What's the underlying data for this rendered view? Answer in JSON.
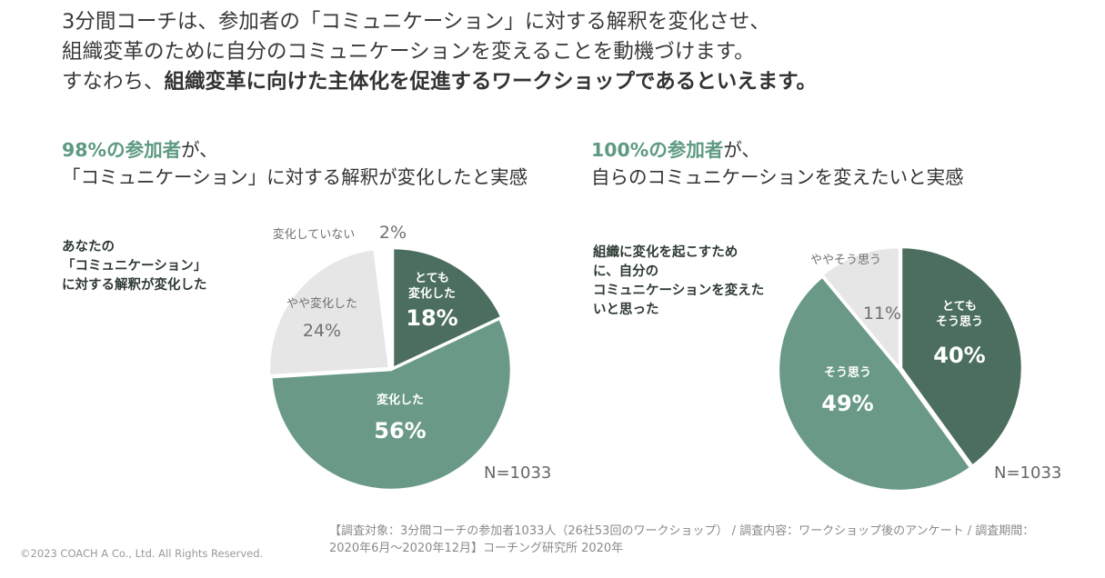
{
  "intro": {
    "line1": "3分間コーチは、参加者の「コミュニケーション」に対する解釈を変化させ、",
    "line2": "組織変革のために自分のコミュニケーションを変えることを動機づけます。",
    "line3_prefix": "すなわち、",
    "line3_bold": "組織変革に向けた主体化を促進するワークショップであるといえます。"
  },
  "left": {
    "headline_highlight": "98%の参加者",
    "headline_rest1": "が、",
    "headline_line2": "「コミュニケーション」に対する解釈が変化したと実感",
    "question": [
      "あなたの",
      "「コミュニケーション」",
      "に対する解釈が変化した"
    ],
    "n_label": "N=1033"
  },
  "right": {
    "headline_highlight": "100%の参加者",
    "headline_rest1": "が、",
    "headline_line2": "自らのコミュニケーションを変えたいと実感",
    "question": [
      "組織に変化を起こすため",
      "に、自分の",
      "コミュニケーションを変えた",
      "いと思った"
    ],
    "n_label": "N=1033"
  },
  "footnote": "【調査対象：3分間コーチの参加者1033人（26社53回のワークショップ） / 調査内容：ワークショップ後のアンケート / 調査期間：2020年6月～2020年12月】コーチング研究所 2020年",
  "copyright": "©2023 COACH A Co., Ltd. All Rights Reserved.",
  "colors": {
    "dark_green": "#4b6e5f",
    "mid_green": "#6a9a87",
    "light_gray": "#e6e6e6",
    "accent": "#5e9a81"
  },
  "chart_data": [
    {
      "type": "pie",
      "slices": [
        {
          "label": [
            "とても",
            "変化した"
          ],
          "value": 18,
          "display": "18%",
          "color": "#4b6e5f"
        },
        {
          "label": [
            "変化した"
          ],
          "value": 56,
          "display": "56%",
          "color": "#6a9a87"
        },
        {
          "label": [
            "やや変化した"
          ],
          "value": 24,
          "display": "24%",
          "color": "#e6e6e6"
        },
        {
          "label": [
            "変化していない"
          ],
          "value": 2,
          "display": "2%",
          "color": "#ffffff"
        }
      ]
    },
    {
      "type": "pie",
      "slices": [
        {
          "label": [
            "とても",
            "そう思う"
          ],
          "value": 40,
          "display": "40%",
          "color": "#4b6e5f"
        },
        {
          "label": [
            "そう思う"
          ],
          "value": 49,
          "display": "49%",
          "color": "#6a9a87"
        },
        {
          "label": [
            "ややそう思う"
          ],
          "value": 11,
          "display": "11%",
          "color": "#e6e6e6"
        }
      ]
    }
  ]
}
